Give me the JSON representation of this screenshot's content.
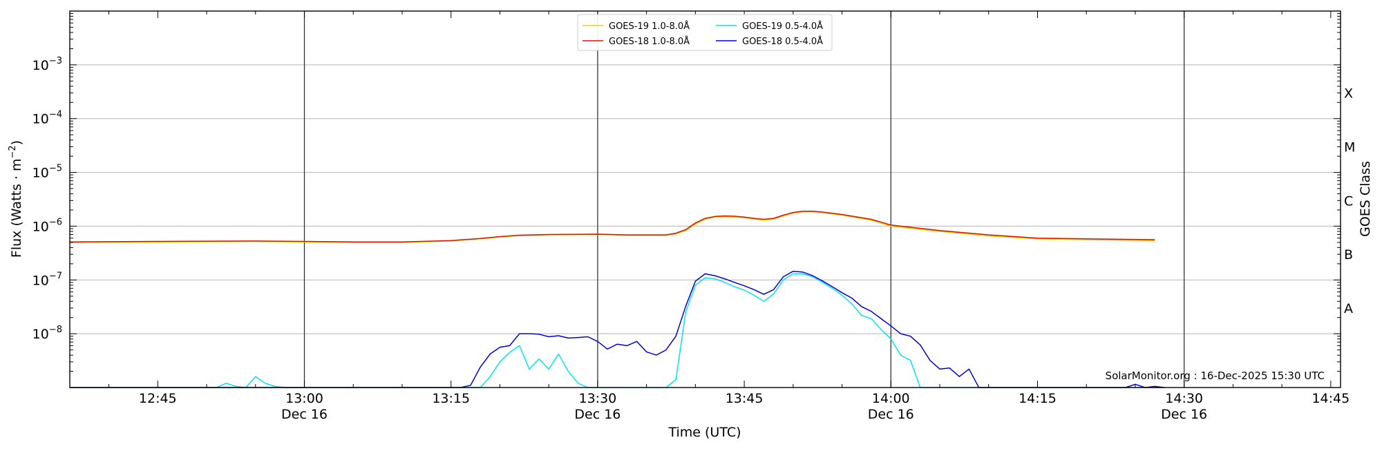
{
  "chart_data": {
    "type": "line",
    "ylabel_main": "Flux (Watts · m",
    "ylabel_sup": "−2",
    "ylabel_close": ")",
    "xlabel": "Time (UTC)",
    "right_label": "GOES Class",
    "credit": "SolarMonitor.org : 16-Dec-2025 15:30 UTC",
    "y_scale": "log",
    "ylim": [
      1e-09,
      0.01
    ],
    "xlim": [
      "12:36",
      "14:46"
    ],
    "grid": "horizontal lines at decades; vertical lines at half hours",
    "legend_position": "top-center",
    "y_ticks": [
      {
        "value": 1e-08,
        "base": "10",
        "exp": "−8"
      },
      {
        "value": 1e-07,
        "base": "10",
        "exp": "−7"
      },
      {
        "value": 1e-06,
        "base": "10",
        "exp": "−6"
      },
      {
        "value": 1e-05,
        "base": "10",
        "exp": "−5"
      },
      {
        "value": 0.0001,
        "base": "10",
        "exp": "−4"
      },
      {
        "value": 0.001,
        "base": "10",
        "exp": "−3"
      }
    ],
    "x_ticks": [
      {
        "time": "12:45",
        "label": "12:45",
        "date": ""
      },
      {
        "time": "13:00",
        "label": "13:00",
        "date": "Dec 16"
      },
      {
        "time": "13:15",
        "label": "13:15",
        "date": ""
      },
      {
        "time": "13:30",
        "label": "13:30",
        "date": "Dec 16"
      },
      {
        "time": "13:45",
        "label": "13:45",
        "date": ""
      },
      {
        "time": "14:00",
        "label": "14:00",
        "date": "Dec 16"
      },
      {
        "time": "14:15",
        "label": "14:15",
        "date": ""
      },
      {
        "time": "14:30",
        "label": "14:30",
        "date": "Dec 16"
      },
      {
        "time": "14:45",
        "label": "14:45",
        "date": ""
      }
    ],
    "goes_classes": [
      {
        "label": "A",
        "value": 3e-08
      },
      {
        "label": "B",
        "value": 3e-07
      },
      {
        "label": "C",
        "value": 3e-06
      },
      {
        "label": "M",
        "value": 3e-05
      },
      {
        "label": "X",
        "value": 0.0003
      }
    ],
    "series": [
      {
        "name": "GOES-19 1.0-8.0Å",
        "color": "#ffcc00",
        "points": [
          [
            "12:36",
            5e-07
          ],
          [
            "12:45",
            5.1e-07
          ],
          [
            "12:55",
            5.2e-07
          ],
          [
            "13:00",
            5.1e-07
          ],
          [
            "13:05",
            5e-07
          ],
          [
            "13:10",
            5e-07
          ],
          [
            "13:15",
            5.3e-07
          ],
          [
            "13:18",
            5.8e-07
          ],
          [
            "13:20",
            6.3e-07
          ],
          [
            "13:22",
            6.7e-07
          ],
          [
            "13:25",
            6.9e-07
          ],
          [
            "13:30",
            7e-07
          ],
          [
            "13:33",
            6.8e-07
          ],
          [
            "13:37",
            6.8e-07
          ],
          [
            "13:38",
            7.2e-07
          ],
          [
            "13:39",
            8.3e-07
          ],
          [
            "13:40",
            1.1e-06
          ],
          [
            "13:41",
            1.35e-06
          ],
          [
            "13:42",
            1.48e-06
          ],
          [
            "13:43",
            1.5e-06
          ],
          [
            "13:44",
            1.48e-06
          ],
          [
            "13:45",
            1.43e-06
          ],
          [
            "13:46",
            1.36e-06
          ],
          [
            "13:47",
            1.3e-06
          ],
          [
            "13:48",
            1.35e-06
          ],
          [
            "13:49",
            1.55e-06
          ],
          [
            "13:50",
            1.75e-06
          ],
          [
            "13:51",
            1.85e-06
          ],
          [
            "13:52",
            1.85e-06
          ],
          [
            "13:53",
            1.78e-06
          ],
          [
            "13:55",
            1.6e-06
          ],
          [
            "13:58",
            1.3e-06
          ],
          [
            "14:00",
            1e-06
          ],
          [
            "14:05",
            8e-07
          ],
          [
            "14:10",
            6.6e-07
          ],
          [
            "14:15",
            5.8e-07
          ],
          [
            "14:20",
            5.6e-07
          ],
          [
            "14:27",
            5.4e-07
          ]
        ]
      },
      {
        "name": "GOES-18 1.0-8.0Å",
        "color": "#dd1100",
        "points": [
          [
            "12:36",
            5.1e-07
          ],
          [
            "12:45",
            5.2e-07
          ],
          [
            "12:55",
            5.3e-07
          ],
          [
            "13:00",
            5.2e-07
          ],
          [
            "13:05",
            5.1e-07
          ],
          [
            "13:10",
            5.1e-07
          ],
          [
            "13:15",
            5.4e-07
          ],
          [
            "13:18",
            5.9e-07
          ],
          [
            "13:20",
            6.4e-07
          ],
          [
            "13:22",
            6.8e-07
          ],
          [
            "13:25",
            7e-07
          ],
          [
            "13:30",
            7.1e-07
          ],
          [
            "13:33",
            6.9e-07
          ],
          [
            "13:37",
            6.9e-07
          ],
          [
            "13:38",
            7.4e-07
          ],
          [
            "13:39",
            8.6e-07
          ],
          [
            "13:40",
            1.15e-06
          ],
          [
            "13:41",
            1.4e-06
          ],
          [
            "13:42",
            1.52e-06
          ],
          [
            "13:43",
            1.55e-06
          ],
          [
            "13:44",
            1.53e-06
          ],
          [
            "13:45",
            1.48e-06
          ],
          [
            "13:46",
            1.4e-06
          ],
          [
            "13:47",
            1.34e-06
          ],
          [
            "13:48",
            1.4e-06
          ],
          [
            "13:49",
            1.6e-06
          ],
          [
            "13:50",
            1.8e-06
          ],
          [
            "13:51",
            1.9e-06
          ],
          [
            "13:52",
            1.9e-06
          ],
          [
            "13:53",
            1.83e-06
          ],
          [
            "13:55",
            1.65e-06
          ],
          [
            "13:58",
            1.34e-06
          ],
          [
            "14:00",
            1.05e-06
          ],
          [
            "14:05",
            8.3e-07
          ],
          [
            "14:10",
            6.9e-07
          ],
          [
            "14:15",
            6e-07
          ],
          [
            "14:20",
            5.8e-07
          ],
          [
            "14:27",
            5.6e-07
          ]
        ]
      },
      {
        "name": "GOES-19 0.5-4.0Å",
        "color": "#00e5ee",
        "points": [
          [
            "12:36",
            1e-09
          ],
          [
            "12:51",
            1e-09
          ],
          [
            "12:52",
            1.2e-09
          ],
          [
            "12:53",
            1.05e-09
          ],
          [
            "12:54",
            1e-09
          ],
          [
            "12:55",
            1.6e-09
          ],
          [
            "12:56",
            1.2e-09
          ],
          [
            "12:57",
            1.05e-09
          ],
          [
            "12:58",
            1e-09
          ],
          [
            "13:18",
            1e-09
          ],
          [
            "13:19",
            1.6e-09
          ],
          [
            "13:20",
            3e-09
          ],
          [
            "13:21",
            4.5e-09
          ],
          [
            "13:22",
            6e-09
          ],
          [
            "13:23",
            2.2e-09
          ],
          [
            "13:24",
            3.4e-09
          ],
          [
            "13:25",
            2.2e-09
          ],
          [
            "13:26",
            4.2e-09
          ],
          [
            "13:27",
            2e-09
          ],
          [
            "13:28",
            1.2e-09
          ],
          [
            "13:29",
            1e-09
          ],
          [
            "13:37",
            1e-09
          ],
          [
            "13:38",
            1.4e-09
          ],
          [
            "13:39",
            2.5e-08
          ],
          [
            "13:40",
            8e-08
          ],
          [
            "13:41",
            1.1e-07
          ],
          [
            "13:42",
            1.05e-07
          ],
          [
            "13:43",
            9e-08
          ],
          [
            "13:44",
            7.5e-08
          ],
          [
            "13:45",
            6.5e-08
          ],
          [
            "13:46",
            5.2e-08
          ],
          [
            "13:47",
            4e-08
          ],
          [
            "13:48",
            5.5e-08
          ],
          [
            "13:49",
            1e-07
          ],
          [
            "13:50",
            1.3e-07
          ],
          [
            "13:51",
            1.3e-07
          ],
          [
            "13:52",
            1.15e-07
          ],
          [
            "13:53",
            9e-08
          ],
          [
            "13:54",
            7e-08
          ],
          [
            "13:55",
            5.2e-08
          ],
          [
            "13:56",
            3.6e-08
          ],
          [
            "13:57",
            2.2e-08
          ],
          [
            "13:58",
            1.9e-08
          ],
          [
            "13:59",
            1.2e-08
          ],
          [
            "14:00",
            8e-09
          ],
          [
            "14:01",
            4e-09
          ],
          [
            "14:02",
            3.2e-09
          ],
          [
            "14:03",
            1e-09
          ],
          [
            "14:28",
            1e-09
          ]
        ]
      },
      {
        "name": "GOES-18 0.5-4.0Å",
        "color": "#0000dd",
        "points": [
          [
            "12:36",
            1e-09
          ],
          [
            "13:16",
            1e-09
          ],
          [
            "13:17",
            1.1e-09
          ],
          [
            "13:18",
            2.4e-09
          ],
          [
            "13:19",
            4.2e-09
          ],
          [
            "13:20",
            5.6e-09
          ],
          [
            "13:21",
            6e-09
          ],
          [
            "13:22",
            1e-08
          ],
          [
            "13:23",
            1e-08
          ],
          [
            "13:24",
            9.8e-09
          ],
          [
            "13:25",
            8.8e-09
          ],
          [
            "13:26",
            9.2e-09
          ],
          [
            "13:27",
            8.3e-09
          ],
          [
            "13:28",
            8.5e-09
          ],
          [
            "13:29",
            8.8e-09
          ],
          [
            "13:30",
            7.2e-09
          ],
          [
            "13:31",
            5.2e-09
          ],
          [
            "13:32",
            6.4e-09
          ],
          [
            "13:33",
            6e-09
          ],
          [
            "13:34",
            7.2e-09
          ],
          [
            "13:35",
            4.6e-09
          ],
          [
            "13:36",
            4e-09
          ],
          [
            "13:37",
            5e-09
          ],
          [
            "13:38",
            9e-09
          ],
          [
            "13:39",
            3.2e-08
          ],
          [
            "13:40",
            9.5e-08
          ],
          [
            "13:41",
            1.3e-07
          ],
          [
            "13:42",
            1.2e-07
          ],
          [
            "13:43",
            1.05e-07
          ],
          [
            "13:44",
            9e-08
          ],
          [
            "13:45",
            7.8e-08
          ],
          [
            "13:46",
            6.6e-08
          ],
          [
            "13:47",
            5.4e-08
          ],
          [
            "13:48",
            6.6e-08
          ],
          [
            "13:49",
            1.15e-07
          ],
          [
            "13:50",
            1.45e-07
          ],
          [
            "13:51",
            1.4e-07
          ],
          [
            "13:52",
            1.2e-07
          ],
          [
            "13:53",
            9.6e-08
          ],
          [
            "13:54",
            7.5e-08
          ],
          [
            "13:55",
            5.8e-08
          ],
          [
            "13:56",
            4.6e-08
          ],
          [
            "13:57",
            3.2e-08
          ],
          [
            "13:58",
            2.6e-08
          ],
          [
            "13:59",
            1.9e-08
          ],
          [
            "14:00",
            1.4e-08
          ],
          [
            "14:01",
            1e-08
          ],
          [
            "14:02",
            9e-09
          ],
          [
            "14:03",
            6.2e-09
          ],
          [
            "14:04",
            3.2e-09
          ],
          [
            "14:05",
            2.2e-09
          ],
          [
            "14:06",
            2.3e-09
          ],
          [
            "14:07",
            1.6e-09
          ],
          [
            "14:08",
            2.2e-09
          ],
          [
            "14:09",
            1e-09
          ],
          [
            "14:24",
            1e-09
          ],
          [
            "14:25",
            1.15e-09
          ],
          [
            "14:26",
            1e-09
          ],
          [
            "14:27",
            1.05e-09
          ],
          [
            "14:28",
            1e-09
          ]
        ]
      }
    ]
  }
}
